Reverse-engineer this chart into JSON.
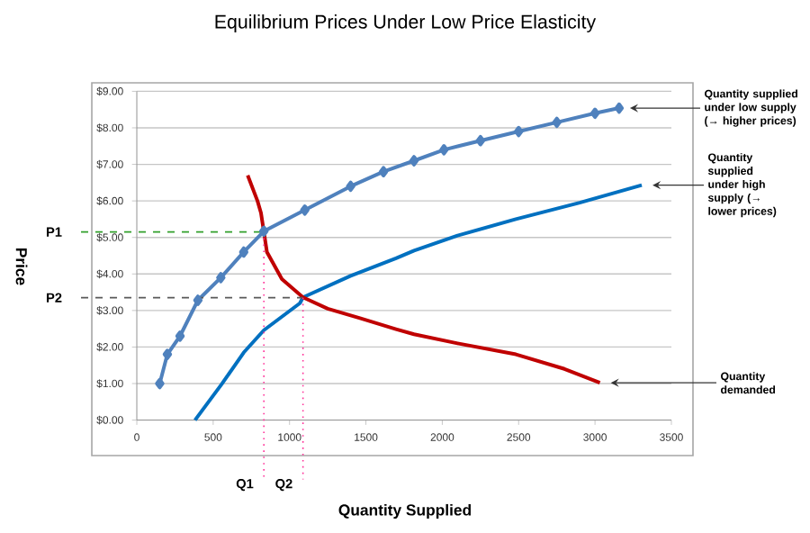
{
  "chart_data": {
    "type": "line",
    "title": "Equilibrium Prices Under Low Price Elasticity",
    "xlabel": "Quantity Supplied",
    "ylabel": "Price",
    "xlim": [
      0,
      3500
    ],
    "xticks": [
      0,
      500,
      1000,
      1500,
      2000,
      2500,
      3000,
      3500
    ],
    "ylim": [
      0,
      9
    ],
    "yticks": [
      {
        "value": 0,
        "label": "$0.00"
      },
      {
        "value": 1,
        "label": "$1.00"
      },
      {
        "value": 2,
        "label": "$2.00"
      },
      {
        "value": 3,
        "label": "$3.00"
      },
      {
        "value": 4,
        "label": "$4.00"
      },
      {
        "value": 5,
        "label": "$5.00"
      },
      {
        "value": 6,
        "label": "$6.00"
      },
      {
        "value": 7,
        "label": "$7.00"
      },
      {
        "value": 8,
        "label": "$8.00"
      },
      {
        "value": 9,
        "label": "$9.00"
      }
    ],
    "grid": "y",
    "series": [
      {
        "color": "#4f81bd",
        "marker": "diamond",
        "x": [
          150,
          200,
          283,
          400,
          550,
          700,
          832,
          1100,
          1400,
          1615,
          1815,
          2011,
          2250,
          2500,
          2750,
          3000,
          3158
        ],
        "values": [
          1.0,
          1.8,
          2.3,
          3.28,
          3.9,
          4.6,
          5.17,
          5.75,
          6.4,
          6.8,
          7.1,
          7.4,
          7.65,
          7.9,
          8.15,
          8.4,
          8.54
        ]
      },
      {
        "color": "#0070c0",
        "x": [
          381,
          557,
          700,
          832,
          1068,
          1088,
          1400,
          1697,
          1815,
          2100,
          2482,
          2900,
          3306
        ],
        "values": [
          0,
          0.99,
          1.85,
          2.46,
          3.2,
          3.36,
          3.95,
          4.43,
          4.64,
          5.05,
          5.5,
          5.95,
          6.43
        ]
      },
      {
        "color": "#c00000",
        "x": [
          726,
          790,
          813,
          852,
          950,
          1088,
          1250,
          1461,
          1697,
          1815,
          2100,
          2482,
          2800,
          3032
        ],
        "values": [
          6.7,
          6.0,
          5.67,
          4.6,
          3.86,
          3.36,
          3.05,
          2.79,
          2.49,
          2.35,
          2.1,
          1.8,
          1.4,
          1.02
        ]
      }
    ],
    "ref_lines": [
      {
        "axis": "y",
        "value": 5.15,
        "label": "P1",
        "color": "#33a02c",
        "line_style": "dashed"
      },
      {
        "axis": "y",
        "value": 3.35,
        "label": "P2",
        "color": "#595959",
        "line_style": "dashed"
      },
      {
        "axis": "x",
        "value": 832,
        "label": "Q1",
        "color": "#ff3399",
        "line_style": "dotted"
      },
      {
        "axis": "x",
        "value": 1088,
        "label": "Q2",
        "color": "#ff3399",
        "line_style": "dotted"
      }
    ],
    "annotations": [
      {
        "text": "Quantity supplied under low supply (→ higher prices)",
        "x": 3158,
        "y": 8.54
      },
      {
        "text": "Quantity supplied under high supply (→ lower prices)",
        "x": 3306,
        "y": 6.43
      },
      {
        "text": "Quantity demanded",
        "x": 3032,
        "y": 1.02
      }
    ]
  }
}
